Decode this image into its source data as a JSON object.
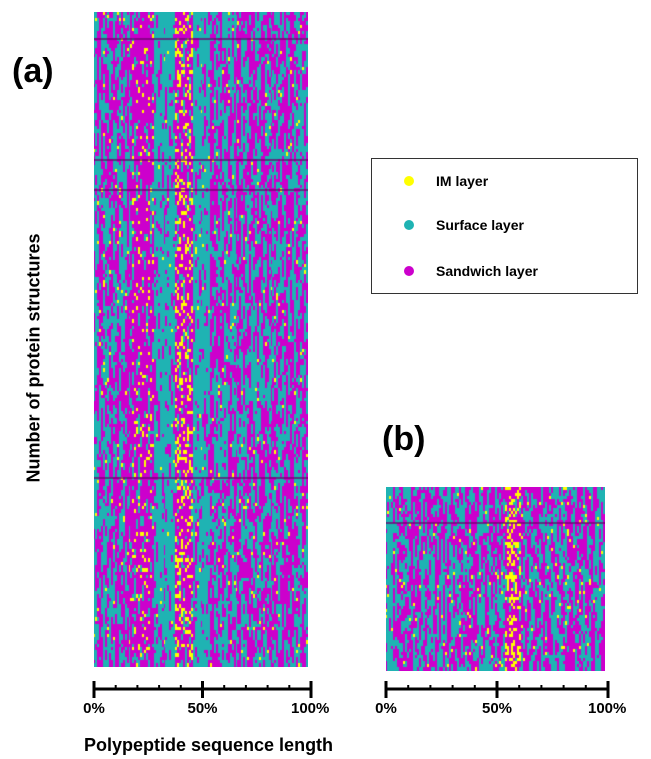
{
  "panel_a_label": "(a)",
  "panel_b_label": "(b)",
  "y_axis_label": "Number of protein structures",
  "x_axis_label": "Polypeptide sequence length",
  "colors": {
    "im": "#ffff00",
    "surface": "#1fb3b3",
    "sandwich": "#cc00cc"
  },
  "legend": [
    {
      "label": "IM layer",
      "color": "#ffff00"
    },
    {
      "label": "Surface layer",
      "color": "#1fb3b3"
    },
    {
      "label": "Sandwich layer",
      "color": "#cc00cc"
    }
  ],
  "chart_data": [
    {
      "type": "heatmap",
      "panel": "(a)",
      "title": "",
      "xlabel": "Polypeptide sequence length",
      "ylabel": "Number of protein structures",
      "x_ticks": [
        "0%",
        "50%",
        "100%"
      ],
      "xlim": [
        0,
        100
      ],
      "n_minor_intervals": 10,
      "categories": [
        "IM layer",
        "Surface layer",
        "Sandwich layer"
      ],
      "rows": 200,
      "columns": 110,
      "column_profile_percent": [
        {
          "x_range": [
            0,
            18
          ],
          "dominant": "mixed Surface/Sandwich",
          "im_fraction": 0.02
        },
        {
          "x_range": [
            18,
            28
          ],
          "dominant": "Sandwich",
          "im_fraction": 0.08
        },
        {
          "x_range": [
            28,
            38
          ],
          "dominant": "Surface",
          "im_fraction": 0.01
        },
        {
          "x_range": [
            38,
            46
          ],
          "dominant": "Sandwich",
          "im_fraction": 0.25
        },
        {
          "x_range": [
            46,
            55
          ],
          "dominant": "Surface",
          "im_fraction": 0.01
        },
        {
          "x_range": [
            55,
            100
          ],
          "dominant": "mixed Surface/Sandwich",
          "im_fraction": 0.02
        }
      ]
    },
    {
      "type": "heatmap",
      "panel": "(b)",
      "title": "",
      "xlabel": "Polypeptide sequence length",
      "ylabel": "",
      "x_ticks": [
        "0%",
        "50%",
        "100%"
      ],
      "xlim": [
        0,
        100
      ],
      "n_minor_intervals": 10,
      "categories": [
        "IM layer",
        "Surface layer",
        "Sandwich layer"
      ],
      "rows": 60,
      "columns": 110,
      "column_profile_percent": [
        {
          "x_range": [
            0,
            4
          ],
          "dominant": "Surface",
          "im_fraction": 0.05
        },
        {
          "x_range": [
            4,
            55
          ],
          "dominant": "mixed Surface/Sandwich",
          "im_fraction": 0.02
        },
        {
          "x_range": [
            55,
            62
          ],
          "dominant": "Sandwich",
          "im_fraction": 0.35
        },
        {
          "x_range": [
            62,
            100
          ],
          "dominant": "mixed Surface/Sandwich",
          "im_fraction": 0.03
        }
      ]
    }
  ]
}
